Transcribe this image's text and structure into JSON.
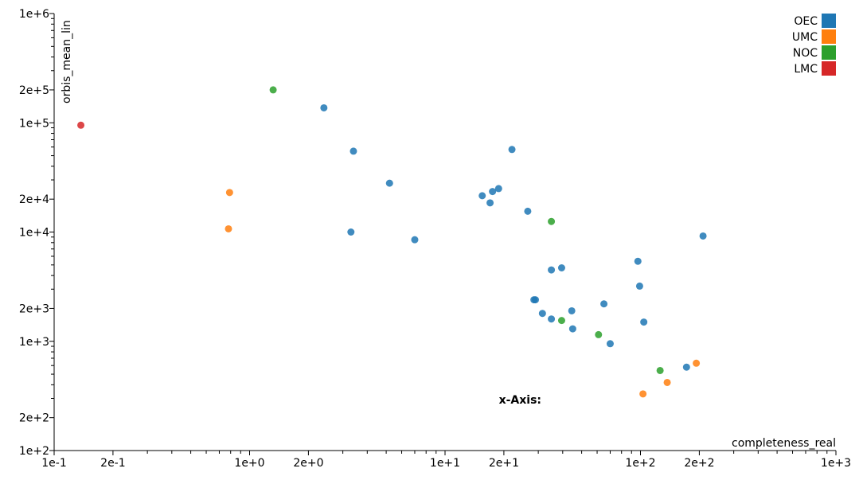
{
  "chart_data": {
    "type": "scatter",
    "title": "",
    "xlabel": "completeness_real",
    "ylabel": "orbis_mean_lin",
    "xscale": "log",
    "yscale": "log",
    "xlim": [
      0.1,
      1000
    ],
    "ylim": [
      100,
      1000000
    ],
    "grid": false,
    "legend_position": "top-right",
    "annotation": "x-Axis:",
    "x_ticks": [
      {
        "value": 0.1,
        "label": "1e-1"
      },
      {
        "value": 0.2,
        "label": "2e-1"
      },
      {
        "value": 1,
        "label": "1e+0"
      },
      {
        "value": 2,
        "label": "2e+0"
      },
      {
        "value": 10,
        "label": "1e+1"
      },
      {
        "value": 20,
        "label": "2e+1"
      },
      {
        "value": 100,
        "label": "1e+2"
      },
      {
        "value": 200,
        "label": "2e+2"
      },
      {
        "value": 1000,
        "label": "1e+3"
      }
    ],
    "y_ticks": [
      {
        "value": 100,
        "label": "1e+2"
      },
      {
        "value": 200,
        "label": "2e+2"
      },
      {
        "value": 1000,
        "label": "1e+3"
      },
      {
        "value": 2000,
        "label": "2e+3"
      },
      {
        "value": 10000,
        "label": "1e+4"
      },
      {
        "value": 20000,
        "label": "2e+4"
      },
      {
        "value": 100000,
        "label": "1e+5"
      },
      {
        "value": 200000,
        "label": "2e+5"
      },
      {
        "value": 1000000,
        "label": "1e+6"
      }
    ],
    "series": [
      {
        "name": "OEC",
        "color": "#1f77b4",
        "points": [
          {
            "x": 2.4,
            "y": 137000
          },
          {
            "x": 3.4,
            "y": 55000
          },
          {
            "x": 5.2,
            "y": 28000
          },
          {
            "x": 3.3,
            "y": 10000
          },
          {
            "x": 7.0,
            "y": 8500
          },
          {
            "x": 15.5,
            "y": 21500
          },
          {
            "x": 17.5,
            "y": 23500
          },
          {
            "x": 18.8,
            "y": 25000
          },
          {
            "x": 17.0,
            "y": 18500
          },
          {
            "x": 22.0,
            "y": 57000
          },
          {
            "x": 26.5,
            "y": 15500
          },
          {
            "x": 29.0,
            "y": 2400
          },
          {
            "x": 28.5,
            "y": 2400
          },
          {
            "x": 31.5,
            "y": 1800
          },
          {
            "x": 35.0,
            "y": 1600
          },
          {
            "x": 35.0,
            "y": 4500
          },
          {
            "x": 39.5,
            "y": 4700
          },
          {
            "x": 44.5,
            "y": 1900
          },
          {
            "x": 45.0,
            "y": 1300
          },
          {
            "x": 65.0,
            "y": 2200
          },
          {
            "x": 70.0,
            "y": 950
          },
          {
            "x": 97.0,
            "y": 5400
          },
          {
            "x": 99.0,
            "y": 3200
          },
          {
            "x": 104.0,
            "y": 1500
          },
          {
            "x": 172.0,
            "y": 580
          },
          {
            "x": 209.0,
            "y": 9200
          }
        ]
      },
      {
        "name": "UMC",
        "color": "#ff7f0e",
        "points": [
          {
            "x": 0.79,
            "y": 23000
          },
          {
            "x": 0.78,
            "y": 10700
          },
          {
            "x": 103.0,
            "y": 330
          },
          {
            "x": 137.0,
            "y": 420
          },
          {
            "x": 193.0,
            "y": 630
          }
        ]
      },
      {
        "name": "NOC",
        "color": "#2ca02c",
        "points": [
          {
            "x": 1.32,
            "y": 200000
          },
          {
            "x": 35.0,
            "y": 12500
          },
          {
            "x": 39.5,
            "y": 1550
          },
          {
            "x": 61.0,
            "y": 1150
          },
          {
            "x": 126.0,
            "y": 540
          }
        ]
      },
      {
        "name": "LMC",
        "color": "#d62728",
        "points": [
          {
            "x": 0.137,
            "y": 95000
          }
        ]
      }
    ]
  }
}
